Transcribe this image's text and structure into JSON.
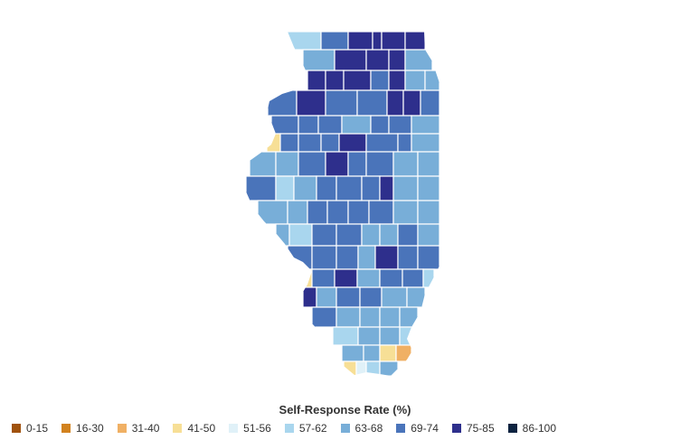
{
  "legend": {
    "title": "Self-Response Rate (%)",
    "items": [
      {
        "label": "0-15",
        "color": "#a0520d"
      },
      {
        "label": "16-30",
        "color": "#d2821e"
      },
      {
        "label": "31-40",
        "color": "#f0b064"
      },
      {
        "label": "41-50",
        "color": "#f7df96"
      },
      {
        "label": "51-56",
        "color": "#e0f1f8"
      },
      {
        "label": "57-62",
        "color": "#a9d6ee"
      },
      {
        "label": "63-68",
        "color": "#78aed8"
      },
      {
        "label": "69-74",
        "color": "#4a74ba"
      },
      {
        "label": "75-85",
        "color": "#2e2f8c"
      },
      {
        "label": "86-100",
        "color": "#0d2340"
      }
    ]
  }
}
